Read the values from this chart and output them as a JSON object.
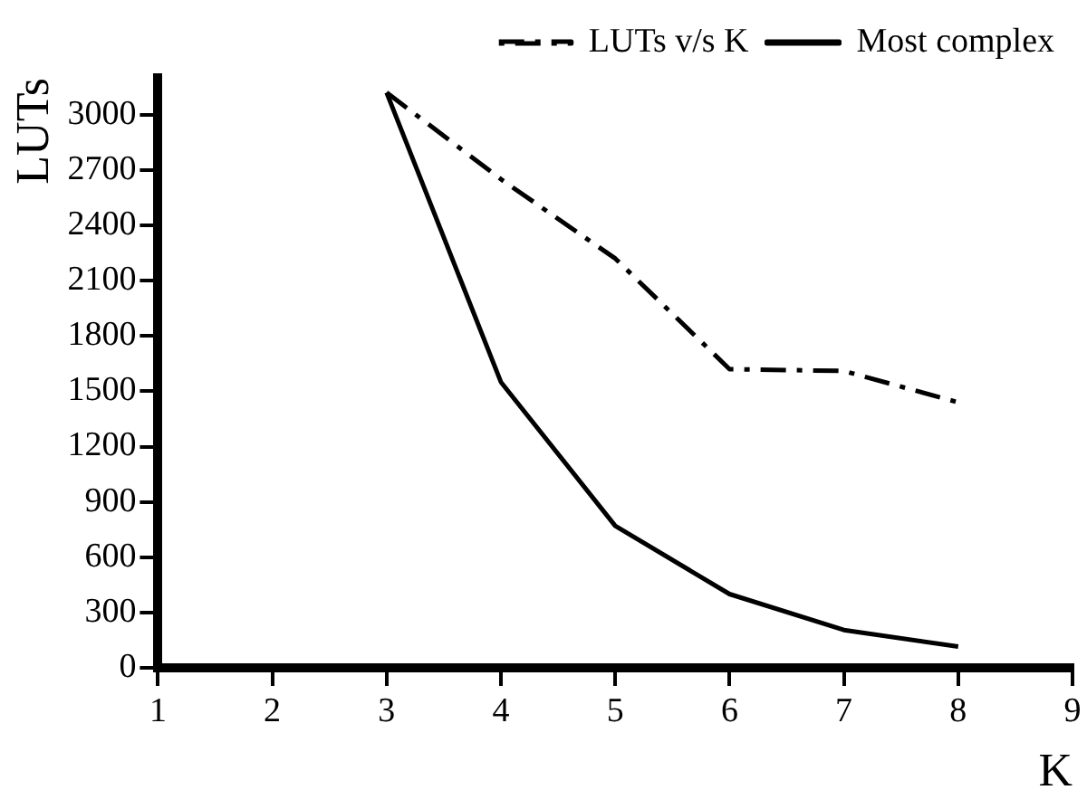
{
  "chart_data": {
    "type": "line",
    "xlabel": "K",
    "ylabel": "LUTs",
    "x": [
      3,
      4,
      5,
      6,
      7,
      8
    ],
    "series": [
      {
        "name": "LUTs v/s K",
        "color": "#000000",
        "line_style": "dashed",
        "values": [
          3120,
          2650,
          2220,
          1620,
          1610,
          1440
        ]
      },
      {
        "name": "Most complex",
        "color": "#000000",
        "line_style": "solid",
        "values": [
          3120,
          1550,
          770,
          400,
          205,
          115
        ]
      }
    ],
    "xlim": [
      1,
      9
    ],
    "xticks": [
      1,
      2,
      3,
      4,
      5,
      6,
      7,
      8,
      9
    ],
    "ylim": [
      0,
      3200
    ],
    "yticks": [
      0,
      300,
      600,
      900,
      1200,
      1500,
      1800,
      2100,
      2400,
      2700,
      3000
    ],
    "grid": false,
    "legend": "top right",
    "marker": "none"
  }
}
